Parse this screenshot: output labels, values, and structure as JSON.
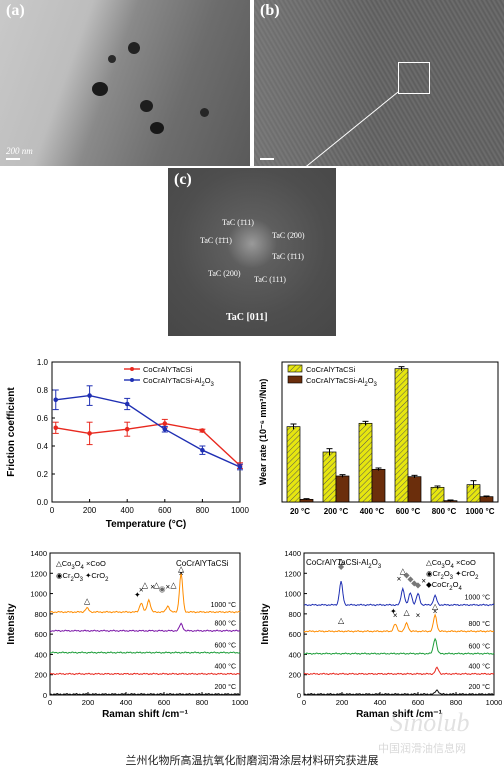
{
  "micrographs": {
    "a": {
      "label": "(a)",
      "scale": "200 nm"
    },
    "b": {
      "label": "(b)"
    },
    "c": {
      "label": "(c)",
      "zone": "TaC [011]",
      "spots": [
        "TaC (1̄11)",
        "TaC (2̄00)",
        "TaC (1̄1̄1)",
        "TaC (1̄11)",
        "TaC (200)",
        "TaC (111)"
      ]
    }
  },
  "friction_legend": [
    "CoCrAlYTaCSi",
    "CoCrAlYTaCSi-Al2O3"
  ],
  "wear_legend": [
    "CoCrAlYTaCSi",
    "CoCrAlYTaCSi-Al2O3"
  ],
  "raman_left_title": "CoCrAlYTaCSi",
  "raman_right_title": "CoCrAlYTaCSi-Al2O3",
  "raman_left_legend": [
    "△Co3O4 ×CoO",
    "◉Cr2O3 ✦CrO2"
  ],
  "raman_right_legend": [
    "△Co3O4 ×CoO",
    "◉Cr2O3 ✦CrO2",
    "◆CoCr2O4"
  ],
  "caption": "兰州化物所高温抗氧化耐磨润滑涂层材料研究获进展",
  "watermark": "Sinolub",
  "watermark_cn": "中国润滑油信息网",
  "colors": {
    "orange": "#ff8c00",
    "purple": "#7b16a8",
    "green": "#1f9e3b",
    "red": "#e8281e",
    "black": "#111111",
    "blue": "#1f2fb3",
    "yellow": "#e6e60f",
    "brown": "#6b2e0c"
  },
  "chart_data": [
    {
      "type": "line",
      "xlabel": "Temperature (°C)",
      "ylabel": "Friction coefficient",
      "xlim": [
        0,
        1000
      ],
      "ylim": [
        0.0,
        1.0
      ],
      "xticks": [
        0,
        200,
        400,
        600,
        800,
        1000
      ],
      "yticks": [
        0.0,
        0.2,
        0.4,
        0.6,
        0.8,
        1.0
      ],
      "series": [
        {
          "name": "CoCrAlYTaCSi",
          "color": "#e8281e",
          "x": [
            20,
            200,
            400,
            600,
            800,
            1000
          ],
          "y": [
            0.53,
            0.49,
            0.52,
            0.56,
            0.51,
            0.26
          ],
          "err": [
            0.04,
            0.08,
            0.05,
            0.03,
            0.01,
            0.02
          ]
        },
        {
          "name": "CoCrAlYTaCSi-Al2O3",
          "color": "#1f2fb3",
          "x": [
            20,
            200,
            400,
            600,
            800,
            1000
          ],
          "y": [
            0.73,
            0.76,
            0.7,
            0.52,
            0.37,
            0.25
          ],
          "err": [
            0.07,
            0.07,
            0.04,
            0.02,
            0.03,
            0.02
          ]
        }
      ]
    },
    {
      "type": "bar",
      "xlabel": "",
      "ylabel": "Wear rate (10⁻⁶ mm³/Nm)",
      "ylim": [
        0,
        210
      ],
      "categories": [
        "20 °C",
        "200 °C",
        "400 °C",
        "600 °C",
        "800 °C",
        "1000 °C"
      ],
      "series": [
        {
          "name": "CoCrAlYTaCSi",
          "color": "#e6e60f",
          "values": [
            113,
            75,
            118,
            200,
            22,
            26
          ],
          "err": [
            4,
            5,
            3,
            3,
            2,
            6
          ]
        },
        {
          "name": "CoCrAlYTaCSi-Al2O3",
          "color": "#6b2e0c",
          "values": [
            4,
            39,
            49,
            38,
            2,
            8
          ],
          "err": [
            1,
            2,
            2,
            2,
            1,
            1
          ]
        }
      ]
    },
    {
      "type": "line",
      "xlabel": "Raman shift /cm⁻¹",
      "ylabel": "Intensity",
      "xlim": [
        0,
        1000
      ],
      "ylim": [
        0,
        1400
      ],
      "xticks": [
        0,
        200,
        400,
        600,
        800,
        1000
      ],
      "yticks": [
        0,
        200,
        400,
        600,
        800,
        1000,
        1200,
        1400
      ],
      "series": [
        {
          "name": "200 °C",
          "offset": 0,
          "color": "#111111"
        },
        {
          "name": "400 °C",
          "offset": 200,
          "color": "#e8281e"
        },
        {
          "name": "600 °C",
          "offset": 410,
          "color": "#1f9e3b"
        },
        {
          "name": "800 °C",
          "offset": 625,
          "color": "#7b16a8",
          "peaks": [
            [
              690,
              70
            ]
          ]
        },
        {
          "name": "1000 °C",
          "offset": 810,
          "color": "#ff8c00",
          "peaks": [
            [
              195,
              40
            ],
            [
              480,
              90
            ],
            [
              520,
              120
            ],
            [
              620,
              60
            ],
            [
              690,
              380
            ]
          ]
        }
      ]
    },
    {
      "type": "line",
      "xlabel": "Raman shift /cm⁻¹",
      "ylabel": "Intensity",
      "xlim": [
        0,
        1000
      ],
      "ylim": [
        0,
        1400
      ],
      "xticks": [
        0,
        200,
        400,
        600,
        800,
        1000
      ],
      "yticks": [
        0,
        200,
        400,
        600,
        800,
        1000,
        1200,
        1400
      ],
      "series": [
        {
          "name": "200 °C",
          "offset": 0,
          "color": "#111111",
          "peaks": [
            [
              700,
              40
            ]
          ]
        },
        {
          "name": "400 °C",
          "offset": 200,
          "color": "#e8281e",
          "peaks": [
            [
              700,
              60
            ]
          ]
        },
        {
          "name": "600 °C",
          "offset": 400,
          "color": "#1f9e3b",
          "peaks": [
            [
              690,
              150
            ]
          ]
        },
        {
          "name": "800 °C",
          "offset": 620,
          "color": "#ff8c00",
          "peaks": [
            [
              480,
              70
            ],
            [
              540,
              80
            ],
            [
              690,
              160
            ]
          ]
        },
        {
          "name": "1000 °C",
          "offset": 880,
          "color": "#1f2fb3",
          "peaks": [
            [
              195,
              230
            ],
            [
              520,
              160
            ],
            [
              560,
              120
            ],
            [
              600,
              110
            ],
            [
              690,
              90
            ]
          ]
        }
      ]
    }
  ]
}
